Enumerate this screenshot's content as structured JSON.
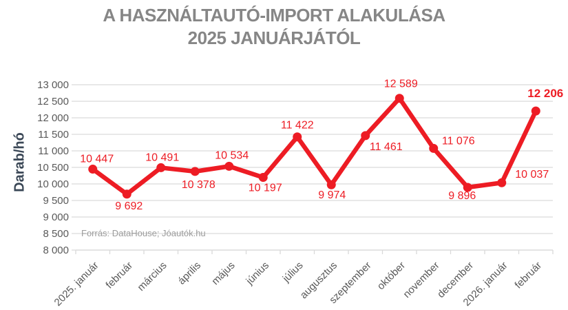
{
  "title": {
    "line1": "A HASZNÁLTAUTÓ-IMPORT ALAKULÁSA",
    "line2": "2025 JANUÁRJÁTÓL"
  },
  "source": "Forrás: DataHouse; Jóautók.hu",
  "colors": {
    "series": "#ed1c24",
    "title_text": "#868686",
    "axis_text": "#595959",
    "axis_title_text": "#3a4756",
    "grid": "#d9d9d9",
    "source_text": "#9b9b9b"
  },
  "chart_data": {
    "type": "line",
    "title": "A HASZNÁLTAUTÓ-IMPORT ALAKULÁSA 2025 JANUÁRJÁTÓL",
    "xlabel": "",
    "ylabel": "Darab/hó",
    "categories": [
      "2025. január",
      "február",
      "március",
      "április",
      "május",
      "június",
      "július",
      "augusztus",
      "szeptember",
      "október",
      "november",
      "december",
      "2026. január",
      "február"
    ],
    "values": [
      10447,
      9692,
      10491,
      10378,
      10534,
      10197,
      11422,
      9974,
      11461,
      12589,
      11076,
      9896,
      10037,
      12206
    ],
    "value_labels": [
      "10 447",
      "9 692",
      "10 491",
      "10 378",
      "10 534",
      "10 197",
      "11 422",
      "9 974",
      "11 461",
      "12 589",
      "11 076",
      "9 896",
      "10 037",
      "12 206"
    ],
    "label_positions": [
      "above",
      "below",
      "above",
      "below",
      "above",
      "below",
      "above",
      "below",
      "below-right",
      "above",
      "right",
      "below",
      "right",
      "above"
    ],
    "last_point_emphasized": true,
    "ylim": [
      8000,
      13000
    ],
    "ytick_step": 500,
    "ytick_labels": [
      "8 000",
      "8 500",
      "9 000",
      "9 500",
      "10 000",
      "10 500",
      "11 000",
      "11 500",
      "12 000",
      "12 500",
      "13 000"
    ],
    "grid": "horizontal",
    "legend": "none",
    "marker": "circle"
  }
}
